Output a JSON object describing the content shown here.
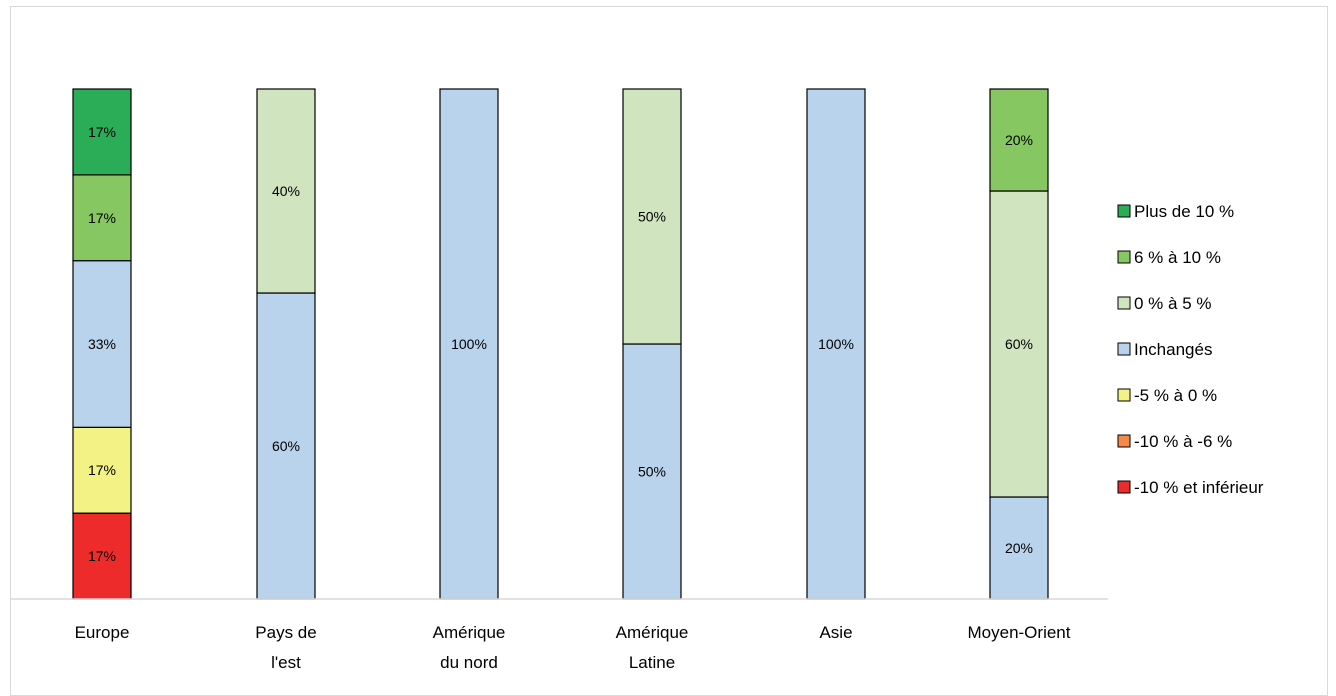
{
  "chart_data": {
    "type": "bar",
    "stacked": true,
    "categories": [
      [
        "Europe"
      ],
      [
        "Pays de",
        "l'est"
      ],
      [
        "Amérique",
        "du nord"
      ],
      [
        "Amérique",
        "Latine"
      ],
      [
        "Asie"
      ],
      [
        "Moyen-Orient"
      ]
    ],
    "series": [
      {
        "name": "-10 % et inférieur",
        "color": "#ee2b2b",
        "values": [
          17,
          0,
          0,
          0,
          0,
          0
        ],
        "labels": [
          "17%",
          "",
          "",
          "",
          "",
          ""
        ]
      },
      {
        "name": "-10 % à -6 %",
        "color": "#f4894a",
        "values": [
          0,
          0,
          0,
          0,
          0,
          0
        ],
        "labels": [
          "",
          "",
          "",
          "",
          "",
          ""
        ]
      },
      {
        "name": "-5 % à 0 %",
        "color": "#f2f285",
        "values": [
          17,
          0,
          0,
          0,
          0,
          0
        ],
        "labels": [
          "17%",
          "",
          "",
          "",
          "",
          ""
        ]
      },
      {
        "name": "Inchangés",
        "color": "#b9d3ec",
        "values": [
          33,
          60,
          100,
          50,
          100,
          20
        ],
        "labels": [
          "33%",
          "60%",
          "100%",
          "50%",
          "100%",
          "20%"
        ]
      },
      {
        "name": "0 % à 5 %",
        "color": "#d0e4c0",
        "values": [
          0,
          40,
          0,
          50,
          0,
          60
        ],
        "labels": [
          "",
          "40%",
          "",
          "50%",
          "",
          "60%"
        ]
      },
      {
        "name": "6 % à 10 %",
        "color": "#86c761",
        "values": [
          17,
          0,
          0,
          0,
          0,
          20
        ],
        "labels": [
          "17%",
          "",
          "",
          "",
          "",
          "20%"
        ]
      },
      {
        "name": "Plus de 10 %",
        "color": "#2bad58",
        "values": [
          17,
          0,
          0,
          0,
          0,
          0
        ],
        "labels": [
          "17%",
          "",
          "",
          "",
          "",
          ""
        ]
      }
    ],
    "legend_order": [
      "Plus de 10 %",
      "6 % à 10 %",
      "0 % à 5 %",
      "Inchangés",
      "-5 % à 0 %",
      "-10 % à -6 %",
      "-10 % et inférieur"
    ],
    "ylim": [
      0,
      100
    ],
    "grid": false,
    "legend_position": "right",
    "title": "",
    "xlabel": "",
    "ylabel": ""
  }
}
